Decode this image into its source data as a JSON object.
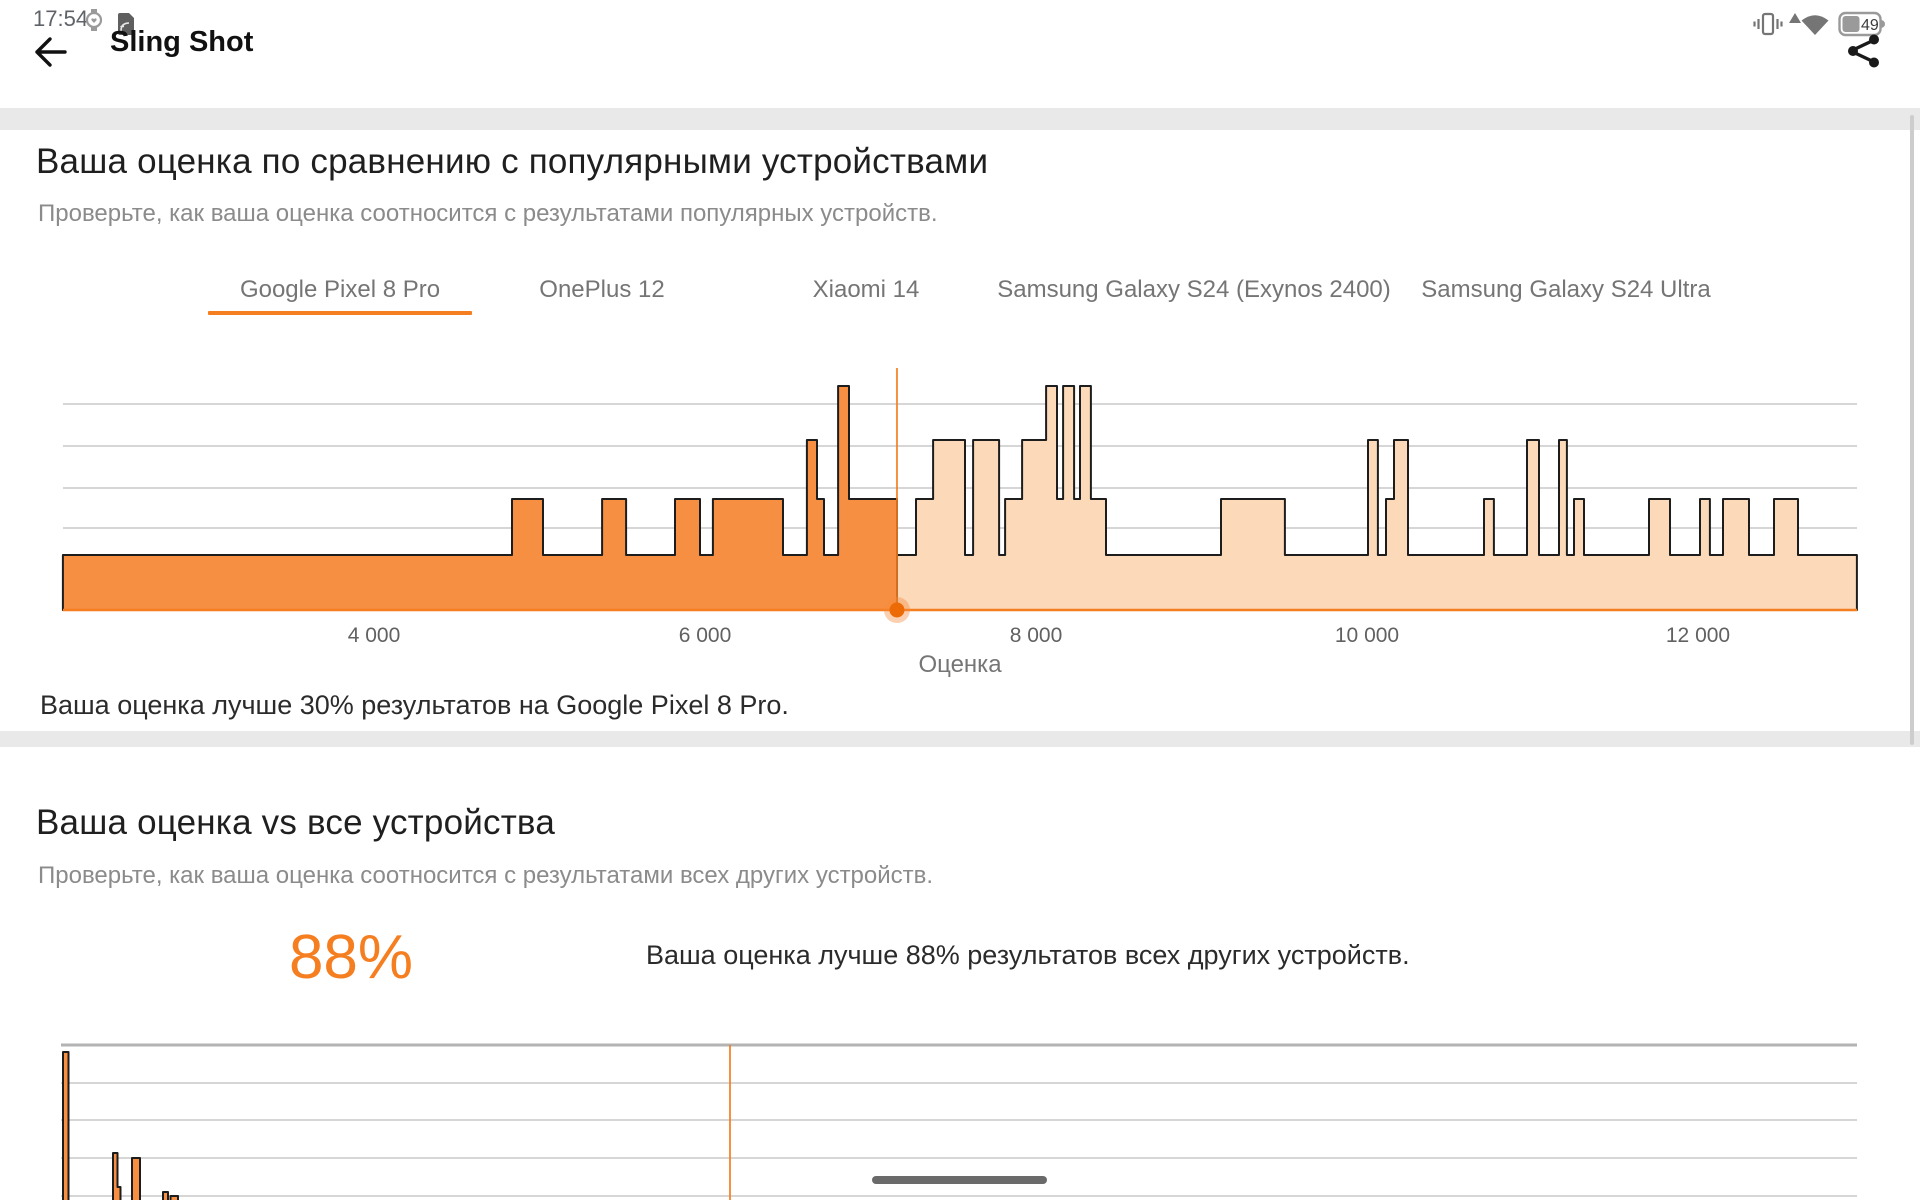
{
  "status_bar": {
    "time": "17:54",
    "battery_level": "49",
    "icons": [
      "watch-icon",
      "sim-data-icon",
      "vibrate-icon",
      "signal-triangle-icon",
      "wifi-icon",
      "battery-icon"
    ]
  },
  "app_bar": {
    "title": "Sling Shot",
    "icons": [
      "back-arrow-icon",
      "share-icon"
    ]
  },
  "section_compare": {
    "title": "Ваша оценка по сравнению с популярными устройствами",
    "subtitle": "Проверьте, как ваша оценка соотносится с результатами популярных устройств.",
    "tabs": [
      {
        "label": "Google Pixel 8 Pro",
        "selected": true
      },
      {
        "label": "OnePlus 12",
        "selected": false
      },
      {
        "label": "Xiaomi 14",
        "selected": false
      },
      {
        "label": "Samsung Galaxy S24 (Exynos 2400)",
        "selected": false
      },
      {
        "label": "Samsung Galaxy S24 Ultra",
        "selected": false
      }
    ],
    "result_text": "Ваша оценка лучше 30% результатов на Google Pixel 8 Pro."
  },
  "section_all": {
    "title": "Ваша оценка vs все устройства",
    "subtitle": "Проверьте, как ваша оценка соотносится с результатами всех других устройств.",
    "percent": "88%",
    "result_text": "Ваша оценка лучше 88% результатов всех других устройств."
  },
  "chart_data": [
    {
      "type": "area",
      "subtype": "score-distribution-histogram",
      "device": "Google Pixel 8 Pro",
      "xlabel": "Оценка",
      "x_ticks": [
        {
          "label": "4 000",
          "value": 4000
        },
        {
          "label": "6 000",
          "value": 6000
        },
        {
          "label": "8 000",
          "value": 8000
        },
        {
          "label": "10 000",
          "value": 10000
        },
        {
          "label": "12 000",
          "value": 12000
        }
      ],
      "xlim": [
        2120,
        12960
      ],
      "grid": true,
      "gridline_count": 5,
      "your_score_marker": 7160,
      "better_than_percent": 30,
      "note": "segments are [score_start, score_end, relative_frequency_level]; levels are approximate counts read from bar heights",
      "segments": [
        [
          2120,
          4834,
          1
        ],
        [
          4834,
          5021,
          2
        ],
        [
          5021,
          5378,
          1
        ],
        [
          5378,
          5523,
          2
        ],
        [
          5523,
          5819,
          1
        ],
        [
          5819,
          5970,
          2
        ],
        [
          5970,
          6048,
          1
        ],
        [
          6048,
          6471,
          2
        ],
        [
          6471,
          6616,
          1
        ],
        [
          6616,
          6677,
          3
        ],
        [
          6677,
          6719,
          2
        ],
        [
          6719,
          6804,
          1
        ],
        [
          6804,
          6870,
          5
        ],
        [
          6870,
          7160,
          2
        ],
        [
          7160,
          7275,
          1
        ],
        [
          7275,
          7378,
          2
        ],
        [
          7378,
          7571,
          3
        ],
        [
          7571,
          7620,
          1
        ],
        [
          7620,
          7777,
          3
        ],
        [
          7777,
          7813,
          1
        ],
        [
          7813,
          7916,
          2
        ],
        [
          7916,
          8061,
          3
        ],
        [
          8061,
          8127,
          5
        ],
        [
          8127,
          8164,
          2
        ],
        [
          8164,
          8230,
          5
        ],
        [
          8230,
          8266,
          2
        ],
        [
          8266,
          8332,
          5
        ],
        [
          8332,
          8423,
          2
        ],
        [
          8423,
          9118,
          1
        ],
        [
          9118,
          9504,
          2
        ],
        [
          9504,
          10006,
          1
        ],
        [
          10006,
          10066,
          3
        ],
        [
          10066,
          10115,
          1
        ],
        [
          10115,
          10163,
          2
        ],
        [
          10163,
          10248,
          3
        ],
        [
          10248,
          10707,
          1
        ],
        [
          10707,
          10767,
          2
        ],
        [
          10767,
          10967,
          1
        ],
        [
          10967,
          11039,
          3
        ],
        [
          11039,
          11160,
          1
        ],
        [
          11160,
          11208,
          3
        ],
        [
          11208,
          11251,
          1
        ],
        [
          11251,
          11311,
          2
        ],
        [
          11311,
          11704,
          1
        ],
        [
          11704,
          11831,
          2
        ],
        [
          11831,
          12012,
          1
        ],
        [
          12012,
          12072,
          2
        ],
        [
          12072,
          12151,
          1
        ],
        [
          12151,
          12308,
          2
        ],
        [
          12308,
          12459,
          1
        ],
        [
          12459,
          12604,
          2
        ],
        [
          12604,
          12960,
          1
        ]
      ]
    },
    {
      "type": "area",
      "subtype": "score-distribution-histogram-all-devices",
      "better_than_percent": 88,
      "note": "chart is cut off at the bottom of the screen; axis labels not visible; bars given as [x_start_px, x_end_px, top_y_px] in page pixels",
      "visible_bars": [
        [
          63,
          68.5,
          1052
        ],
        [
          113,
          117.5,
          1153
        ],
        [
          117.5,
          120.5,
          1187
        ],
        [
          132,
          140,
          1158
        ],
        [
          163,
          168,
          1192
        ],
        [
          170.5,
          178,
          1196
        ]
      ],
      "marker_line_x_px": 730,
      "grid": true
    }
  ],
  "colors": {
    "accent_orange": "#F57E20",
    "fill_dark": "#F78F42",
    "fill_light": "#FBD9B9",
    "marker_dot": "#ED6B06",
    "marker_halo": "rgba(245,138,60,0.4)",
    "outline": "#1d1d1d",
    "gridline": "#bdbdbd",
    "chart2_top_border": "#b3b3b3",
    "tick_text": "#616161",
    "axis_label_text": "#757575"
  }
}
